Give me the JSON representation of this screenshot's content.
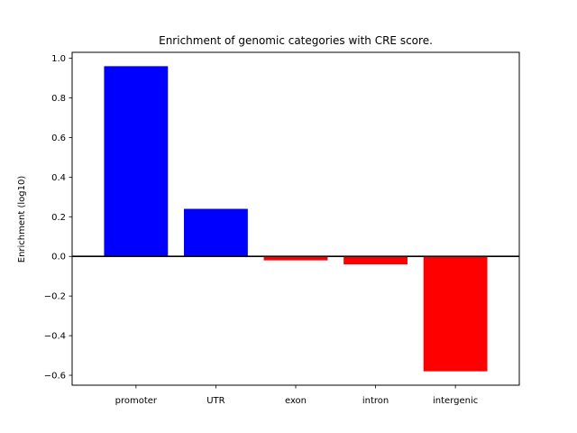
{
  "chart_data": {
    "type": "bar",
    "title": "Enrichment of genomic categories with CRE score.",
    "xlabel": "",
    "ylabel": "Enrichment (log10)",
    "categories": [
      "promoter",
      "UTR",
      "exon",
      "intron",
      "intergenic"
    ],
    "values": [
      0.96,
      0.24,
      -0.02,
      -0.04,
      -0.58
    ],
    "colors": [
      "#0000ff",
      "#0000ff",
      "#ff0000",
      "#ff0000",
      "#ff0000"
    ],
    "ylim": [
      -0.65,
      1.03
    ],
    "yticks": [
      "1.0",
      "0.8",
      "0.6",
      "0.4",
      "0.2",
      "0.0",
      "−0.2",
      "−0.4",
      "−0.6"
    ],
    "ytick_values": [
      1.0,
      0.8,
      0.6,
      0.4,
      0.2,
      0.0,
      -0.2,
      -0.4,
      -0.6
    ],
    "zero_line": true,
    "grid": false,
    "legend": "none"
  }
}
